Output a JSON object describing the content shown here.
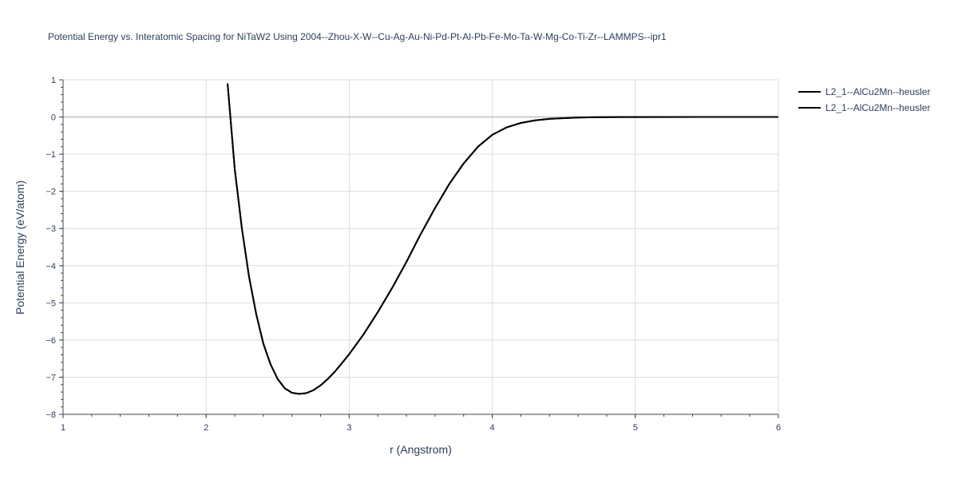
{
  "chart_data": {
    "type": "line",
    "title": "Potential Energy vs. Interatomic Spacing for NiTaW2 Using 2004--Zhou-X-W--Cu-Ag-Au-Ni-Pd-Pt-Al-Pb-Fe-Mo-Ta-W-Mg-Co-Ti-Zr--LAMMPS--ipr1",
    "xlabel": "r (Angstrom)",
    "ylabel": "Potential Energy (eV/atom)",
    "xlim": [
      1,
      6
    ],
    "ylim": [
      -8,
      1
    ],
    "x_ticks": [
      1,
      2,
      3,
      4,
      5,
      6
    ],
    "x_tick_labels": [
      "1",
      "2",
      "3",
      "4",
      "5",
      "6"
    ],
    "y_ticks": [
      1,
      0,
      -1,
      -2,
      -3,
      -4,
      -5,
      -6,
      -7,
      -8
    ],
    "y_tick_labels": [
      "1",
      "0",
      "−1",
      "−2",
      "−3",
      "−4",
      "−5",
      "−6",
      "−7",
      "−8"
    ],
    "grid": true,
    "legend_position": "top-right",
    "series": [
      {
        "name": "L2_1--AlCu2Mn--heusler",
        "color": "#000000",
        "x": [
          2.15,
          2.2,
          2.25,
          2.3,
          2.35,
          2.4,
          2.45,
          2.5,
          2.55,
          2.6,
          2.65,
          2.7,
          2.75,
          2.8,
          2.85,
          2.9,
          2.95,
          3.0,
          3.1,
          3.2,
          3.3,
          3.4,
          3.5,
          3.6,
          3.7,
          3.8,
          3.9,
          4.0,
          4.1,
          4.2,
          4.3,
          4.4,
          4.5,
          4.6,
          4.7,
          4.8,
          4.9,
          5.0,
          5.5,
          6.0
        ],
        "y": [
          0.9,
          -1.4,
          -3.0,
          -4.3,
          -5.3,
          -6.1,
          -6.65,
          -7.05,
          -7.3,
          -7.42,
          -7.45,
          -7.43,
          -7.35,
          -7.22,
          -7.05,
          -6.85,
          -6.62,
          -6.38,
          -5.85,
          -5.25,
          -4.6,
          -3.9,
          -3.15,
          -2.45,
          -1.8,
          -1.25,
          -0.8,
          -0.48,
          -0.28,
          -0.16,
          -0.09,
          -0.05,
          -0.03,
          -0.015,
          -0.008,
          -0.004,
          -0.002,
          -0.001,
          0.0,
          0.0
        ]
      },
      {
        "name": "L2_1--AlCu2Mn--heusler",
        "color": "#000000",
        "x": [
          2.15,
          2.2,
          2.25,
          2.3,
          2.35,
          2.4,
          2.45,
          2.5,
          2.55,
          2.6,
          2.65,
          2.7,
          2.75,
          2.8,
          2.85,
          2.9,
          2.95,
          3.0,
          3.1,
          3.2,
          3.3,
          3.4,
          3.5,
          3.6,
          3.7,
          3.8,
          3.9,
          4.0,
          4.1,
          4.2,
          4.3,
          4.4,
          4.5,
          4.6,
          4.7,
          4.8,
          4.9,
          5.0,
          5.5,
          6.0
        ],
        "y": [
          0.9,
          -1.4,
          -3.0,
          -4.3,
          -5.3,
          -6.1,
          -6.65,
          -7.05,
          -7.3,
          -7.42,
          -7.45,
          -7.43,
          -7.35,
          -7.22,
          -7.05,
          -6.85,
          -6.62,
          -6.38,
          -5.85,
          -5.25,
          -4.6,
          -3.9,
          -3.15,
          -2.45,
          -1.8,
          -1.25,
          -0.8,
          -0.48,
          -0.28,
          -0.16,
          -0.09,
          -0.05,
          -0.03,
          -0.015,
          -0.008,
          -0.004,
          -0.002,
          -0.001,
          0.0,
          0.0
        ]
      }
    ]
  }
}
